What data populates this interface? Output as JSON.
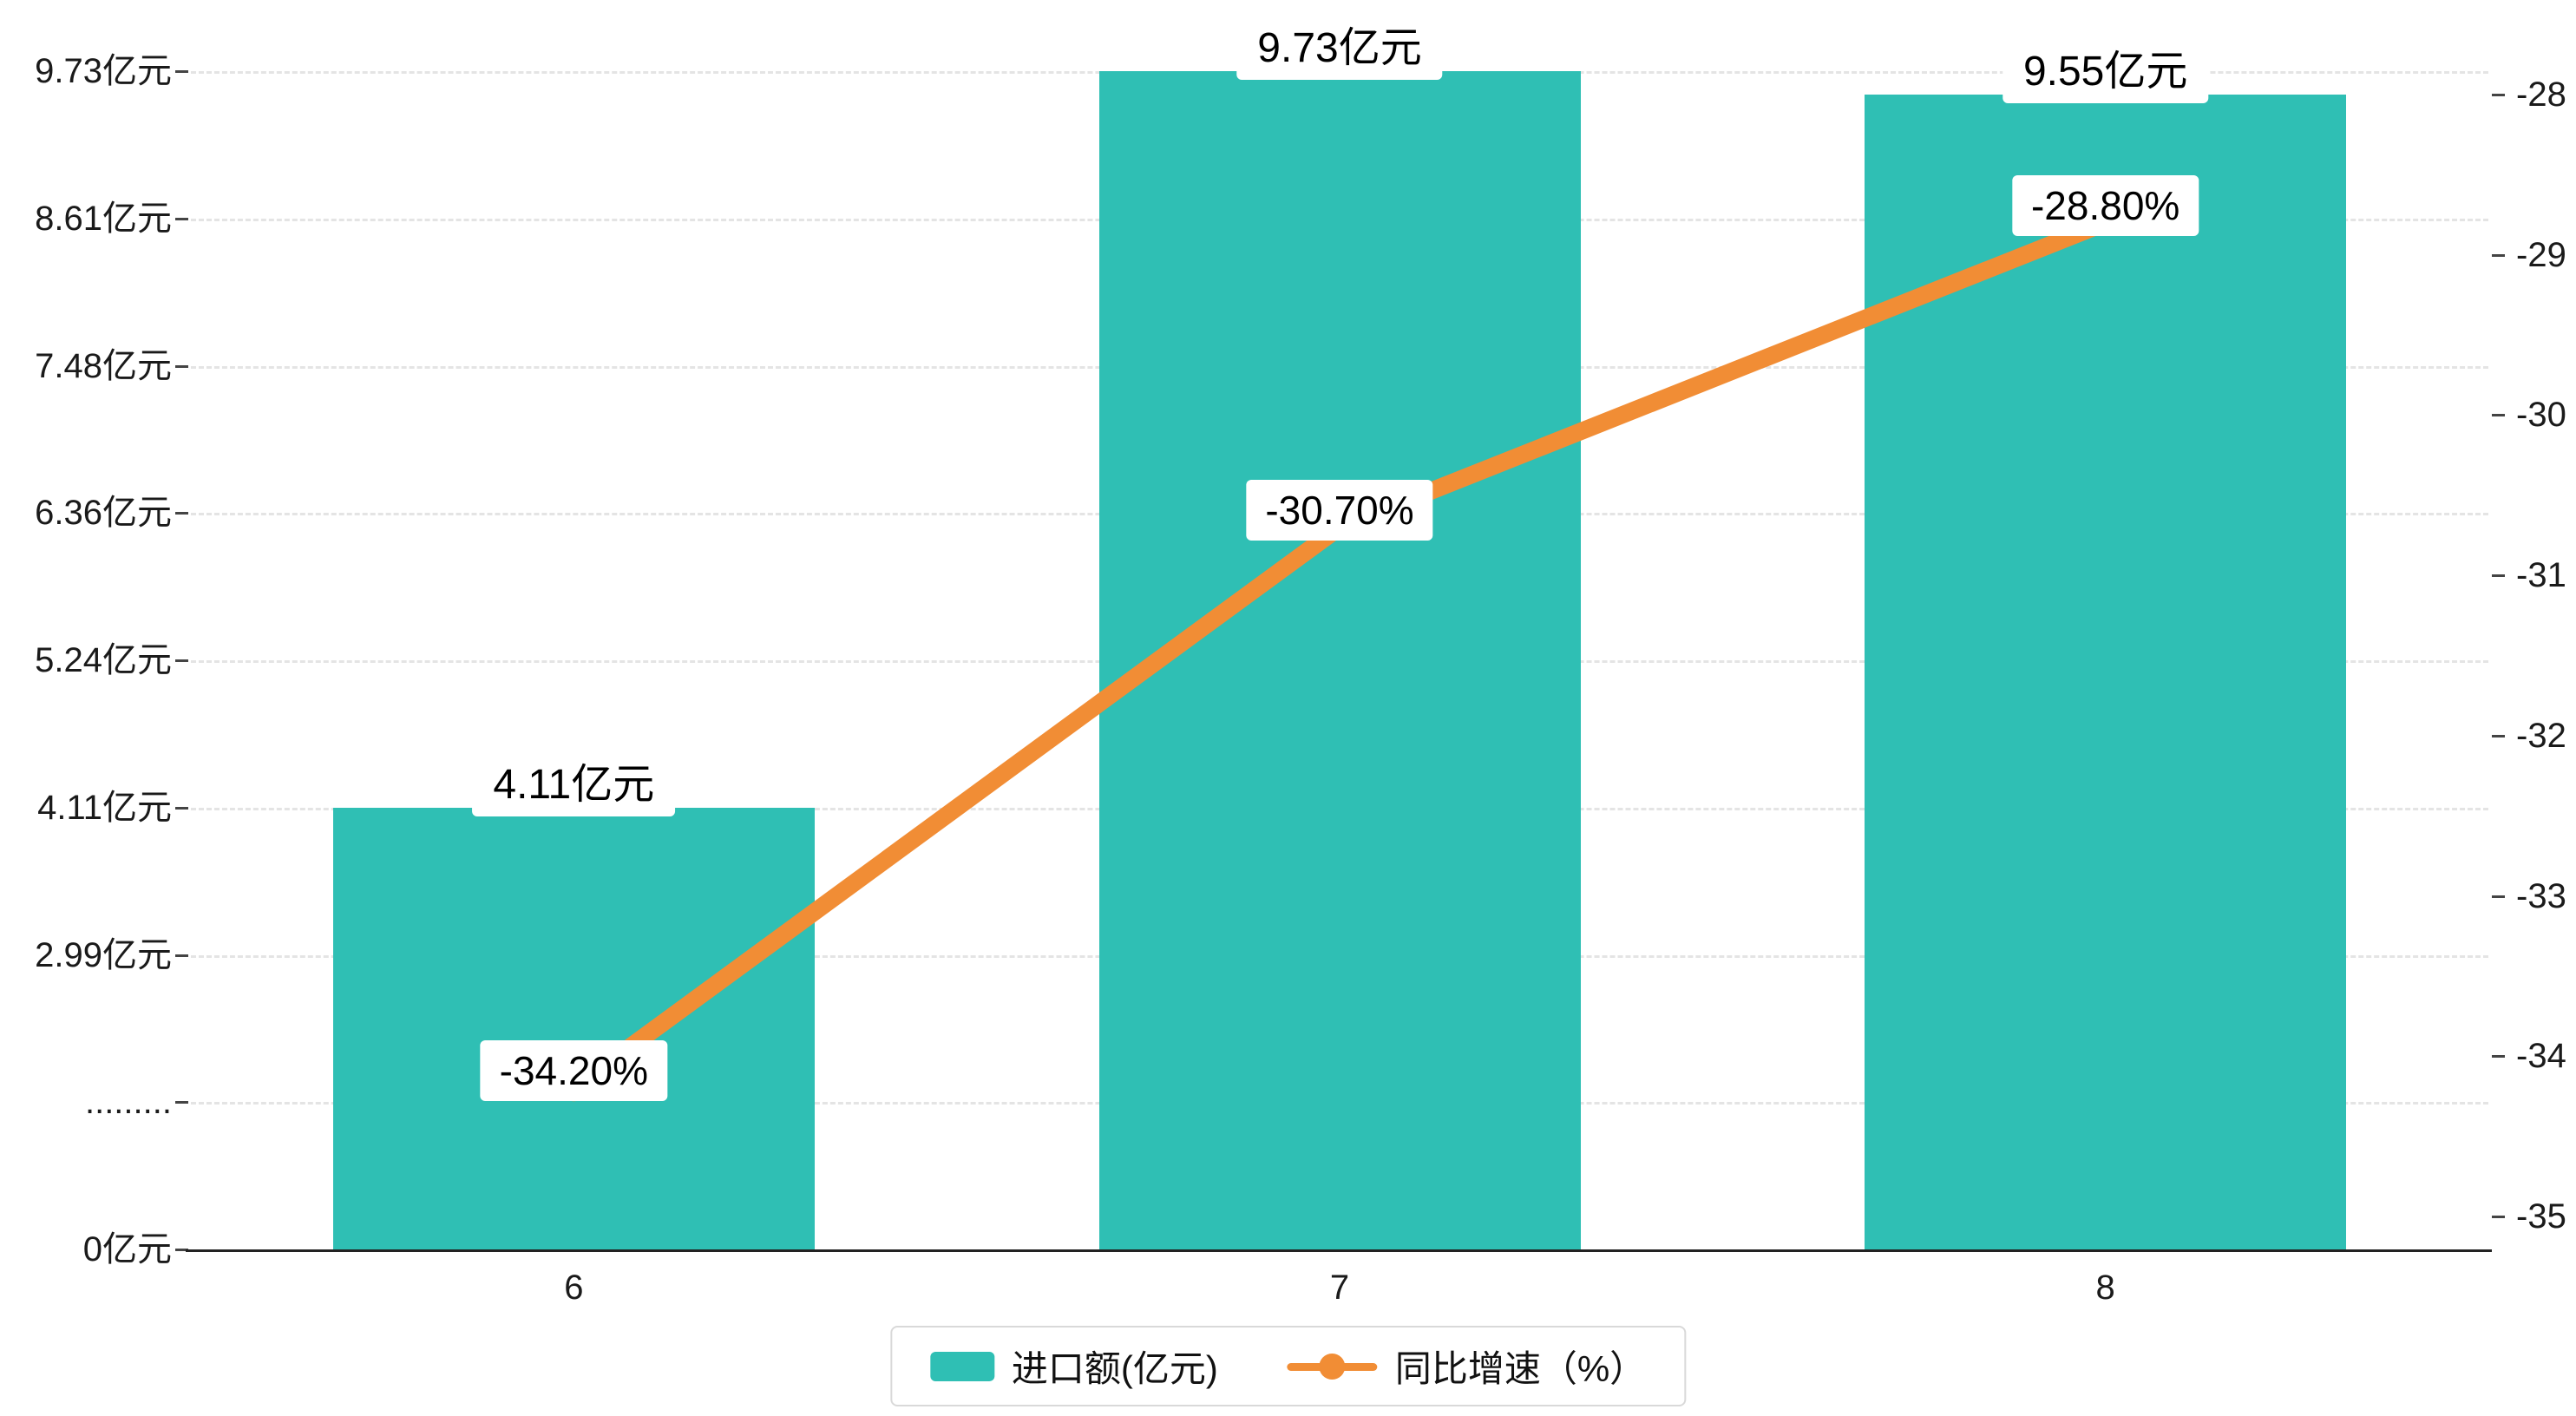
{
  "chart_data": {
    "type": "bar",
    "combo": "bar+line dual axis",
    "categories": [
      "6",
      "7",
      "8"
    ],
    "series": [
      {
        "name": "进口额(亿元)",
        "type": "bar",
        "axis": "left",
        "values": [
          4.11,
          9.73,
          9.55
        ],
        "labels": [
          "4.11亿元",
          "9.73亿元",
          "9.55亿元"
        ],
        "color": "#2FBFB4"
      },
      {
        "name": "同比增速（%）",
        "type": "line",
        "axis": "right",
        "values": [
          -34.2,
          -30.7,
          -28.8
        ],
        "labels": [
          "-34.20%",
          "-30.70%",
          "-28.80%"
        ],
        "color": "#F18D35"
      }
    ],
    "left_axis": {
      "tick_labels": [
        "0亿元",
        ".........",
        "2.99亿元",
        "4.11亿元",
        "5.24亿元",
        "6.36亿元",
        "7.48亿元",
        "8.61亿元",
        "9.73亿元"
      ],
      "tick_values": [
        0,
        1.87,
        2.99,
        4.11,
        5.24,
        6.36,
        7.48,
        8.61,
        9.73
      ],
      "range": [
        0,
        9.73
      ]
    },
    "right_axis": {
      "tick_labels": [
        "-28",
        "-29",
        "-30",
        "-31",
        "-32",
        "-33",
        "-34",
        "-35"
      ],
      "tick_values": [
        -28,
        -29,
        -30,
        -31,
        -32,
        -33,
        -34,
        -35
      ],
      "range": [
        -35,
        -28
      ]
    },
    "x_axis": {
      "tick_labels": [
        "6",
        "7",
        "8"
      ]
    },
    "legend": [
      {
        "label": "进口额(亿元)",
        "swatch": "bar",
        "color": "#2FBFB4"
      },
      {
        "label": "同比增速（%）",
        "swatch": "line",
        "color": "#F18D35"
      }
    ],
    "grid": true,
    "legend_position": "bottom-center",
    "background": "#ffffff"
  }
}
